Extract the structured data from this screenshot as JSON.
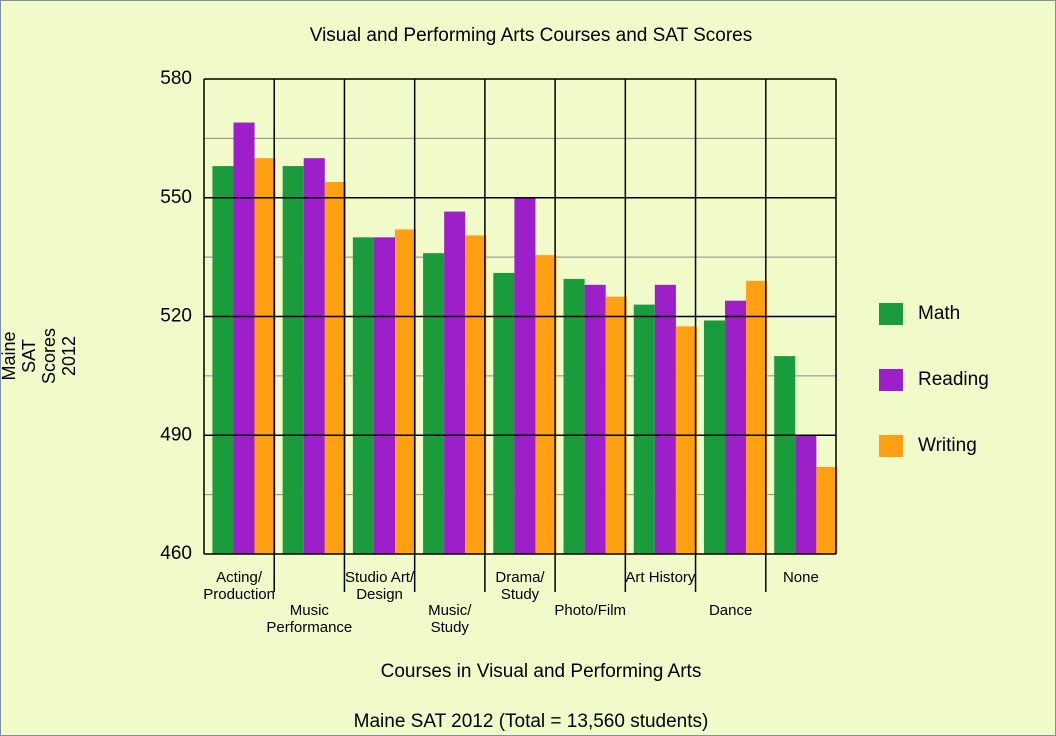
{
  "chart_data": {
    "type": "bar",
    "title": "Visual and Performing Arts Courses and SAT Scores",
    "x_label": "Courses in Visual and Performing Arts",
    "y_label": "Maine\nSAT\nScores\n2012",
    "footer": "Maine SAT 2012 (Total = 13,560 students)",
    "categories": [
      "Acting/\nProduction",
      "Music\nPerformance",
      "Studio Art/\nDesign",
      "Music/\nStudy",
      "Drama/\nStudy",
      "Photo/Film",
      "Art History",
      "Dance",
      "None"
    ],
    "series": [
      {
        "name": "Math",
        "color": "#1a9b3c",
        "values": [
          558,
          558,
          540,
          536,
          531,
          529.5,
          523,
          519,
          510
        ]
      },
      {
        "name": "Reading",
        "color": "#9c1fc9",
        "values": [
          569,
          560,
          540,
          546.5,
          550,
          528,
          528,
          524,
          490
        ]
      },
      {
        "name": "Writing",
        "color": "#ffa012",
        "values": [
          560,
          554,
          542,
          540.5,
          535.5,
          525,
          517.5,
          529,
          482
        ]
      }
    ],
    "ylim": [
      460,
      580
    ],
    "yticks": [
      460,
      490,
      520,
      550,
      580
    ],
    "minor_yticks": [
      475,
      505,
      535,
      565
    ],
    "grid": true,
    "legend": "right"
  }
}
